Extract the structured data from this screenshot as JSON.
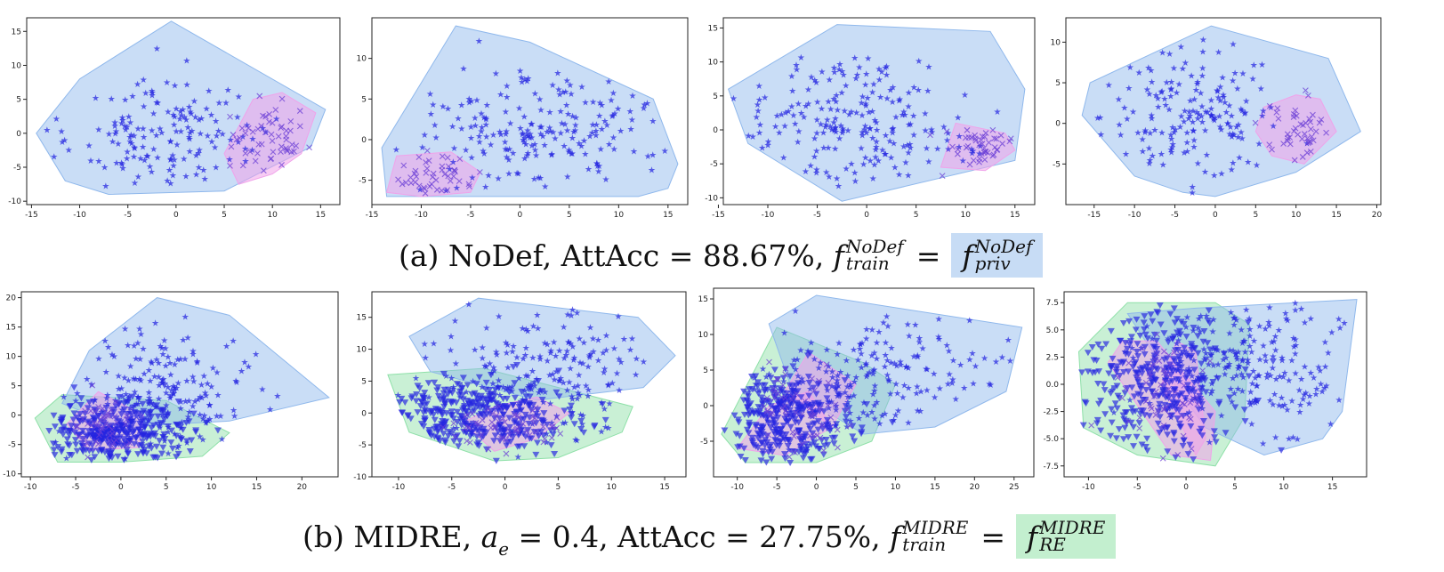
{
  "colors": {
    "hull_blue": "#8fb8ec",
    "hull_pink": "#f0a3ea",
    "hull_green": "#8ee0a8",
    "marker": "#2525e0",
    "highlight_a": "#c7dcf5",
    "highlight_b": "#c3efcf"
  },
  "captions": {
    "a": {
      "prefix": "(a) NoDef, AttAcc = 88.67%, ",
      "f": "f",
      "sup1": "NoDef",
      "sub1": "train",
      "eq": "=",
      "sup2": "NoDef",
      "sub2": "priv"
    },
    "b": {
      "prefix": "(b) MIDRE, ",
      "a_sym": "a",
      "a_sub": "e",
      "middle": " = 0.4, AttAcc = 27.75%, ",
      "f": "f",
      "sup1": "MIDRE",
      "sub1": "train",
      "eq": "=",
      "sup2": "MIDRE",
      "sub2": "RE"
    }
  },
  "chart_data": [
    {
      "type": "scatter",
      "row": "a",
      "xlim": [
        -15.5,
        17
      ],
      "ylim": [
        -10.5,
        17
      ],
      "xticks": [
        "-15",
        "-10",
        "-5",
        "0",
        "5",
        "10",
        "15"
      ],
      "yticks": [
        "-10",
        "-5",
        "0",
        "5",
        "10",
        "15"
      ],
      "hulls": [
        {
          "color": "blue",
          "points": [
            [
              -14.5,
              0
            ],
            [
              -10,
              8
            ],
            [
              -0.5,
              16.5
            ],
            [
              15.5,
              3.5
            ],
            [
              14,
              -2
            ],
            [
              5,
              -8.5
            ],
            [
              -7,
              -9
            ],
            [
              -11.5,
              -7
            ]
          ]
        },
        {
          "color": "pink",
          "points": [
            [
              6.5,
              -7.5
            ],
            [
              10,
              -6
            ],
            [
              13,
              -3
            ],
            [
              14.5,
              3
            ],
            [
              11,
              6
            ],
            [
              8,
              5
            ],
            [
              5,
              -3
            ]
          ]
        }
      ],
      "clusters": [
        {
          "marker": "star",
          "n": 155,
          "cx": -1,
          "cy": 0,
          "sx": 5.2,
          "sy": 4.2,
          "seed": 11
        },
        {
          "marker": "x",
          "n": 55,
          "cx": 10,
          "cy": -1,
          "sx": 2.2,
          "sy": 3.0,
          "seed": 12
        }
      ]
    },
    {
      "type": "scatter",
      "row": "a",
      "xlim": [
        -15,
        17
      ],
      "ylim": [
        -8,
        15
      ],
      "xticks": [
        "-15",
        "-10",
        "-5",
        "0",
        "5",
        "10",
        "15"
      ],
      "yticks": [
        "-5",
        "0",
        "5",
        "10"
      ],
      "hulls": [
        {
          "color": "blue",
          "points": [
            [
              -14,
              -1
            ],
            [
              -6.5,
              14
            ],
            [
              1,
              12
            ],
            [
              13.5,
              5
            ],
            [
              16,
              -3
            ],
            [
              15,
              -6
            ],
            [
              12,
              -7
            ],
            [
              -7,
              -7
            ],
            [
              -13.5,
              -7
            ]
          ]
        },
        {
          "color": "pink",
          "points": [
            [
              -13.5,
              -6.5
            ],
            [
              -12.5,
              -2
            ],
            [
              -7,
              -1.5
            ],
            [
              -4,
              -4
            ],
            [
              -5,
              -6.5
            ],
            [
              -10,
              -7
            ]
          ]
        }
      ],
      "clusters": [
        {
          "marker": "star",
          "n": 200,
          "cx": 2,
          "cy": 1.5,
          "sx": 6.5,
          "sy": 4.2,
          "seed": 21
        },
        {
          "marker": "x",
          "n": 45,
          "cx": -9,
          "cy": -4.5,
          "sx": 2.2,
          "sy": 1.3,
          "seed": 22
        }
      ]
    },
    {
      "type": "scatter",
      "row": "a",
      "xlim": [
        -14.5,
        17
      ],
      "ylim": [
        -11,
        16.5
      ],
      "xticks": [
        "-15",
        "-10",
        "-5",
        "0",
        "5",
        "10",
        "15"
      ],
      "yticks": [
        "-10",
        "-5",
        "0",
        "5",
        "10",
        "15"
      ],
      "hulls": [
        {
          "color": "blue",
          "points": [
            [
              -14,
              6
            ],
            [
              -3,
              15.5
            ],
            [
              12.5,
              14.5
            ],
            [
              16,
              6
            ],
            [
              15,
              -4.5
            ],
            [
              -2.5,
              -10.5
            ],
            [
              -12,
              -2
            ]
          ]
        },
        {
          "color": "pink",
          "points": [
            [
              7.5,
              -5.5
            ],
            [
              9,
              1
            ],
            [
              14,
              -0.5
            ],
            [
              15,
              -3
            ],
            [
              12,
              -6
            ]
          ]
        }
      ],
      "clusters": [
        {
          "marker": "star",
          "n": 210,
          "cx": -2,
          "cy": 0.5,
          "sx": 6.0,
          "sy": 5.0,
          "seed": 31
        },
        {
          "marker": "x",
          "n": 45,
          "cx": 11.5,
          "cy": -2.5,
          "sx": 1.8,
          "sy": 1.5,
          "seed": 32
        }
      ]
    },
    {
      "type": "scatter",
      "row": "a",
      "xlim": [
        -18.5,
        20.5
      ],
      "ylim": [
        -10,
        13
      ],
      "xticks": [
        "-15",
        "-10",
        "-5",
        "0",
        "5",
        "10",
        "15",
        "20"
      ],
      "yticks": [
        "-5",
        "0",
        "5",
        "10"
      ],
      "hulls": [
        {
          "color": "blue",
          "points": [
            [
              -16.5,
              1
            ],
            [
              -15.5,
              5
            ],
            [
              -0.5,
              12
            ],
            [
              14,
              8
            ],
            [
              18,
              -1
            ],
            [
              10,
              -6
            ],
            [
              0,
              -9
            ],
            [
              -4,
              -8.5
            ],
            [
              -10,
              -6.5
            ]
          ]
        },
        {
          "color": "pink",
          "points": [
            [
              5,
              -1
            ],
            [
              6,
              2
            ],
            [
              10,
              3.5
            ],
            [
              13,
              3
            ],
            [
              15,
              -1
            ],
            [
              11,
              -5
            ],
            [
              7,
              -4
            ]
          ]
        }
      ],
      "clusters": [
        {
          "marker": "star",
          "n": 170,
          "cx": -3,
          "cy": 1,
          "sx": 5.5,
          "sy": 4.0,
          "seed": 41
        },
        {
          "marker": "x",
          "n": 45,
          "cx": 10,
          "cy": -1,
          "sx": 2.2,
          "sy": 1.8,
          "seed": 42
        }
      ]
    },
    {
      "type": "scatter",
      "row": "b",
      "xlim": [
        -11,
        24
      ],
      "ylim": [
        -10.5,
        21
      ],
      "xticks": [
        "-10",
        "-5",
        "0",
        "5",
        "10",
        "15",
        "20"
      ],
      "yticks": [
        "-10",
        "-5",
        "0",
        "5",
        "10",
        "15",
        "20"
      ],
      "hulls": [
        {
          "color": "green",
          "points": [
            [
              -9.5,
              -0.5
            ],
            [
              -6.5,
              3.5
            ],
            [
              5,
              2.5
            ],
            [
              12,
              -3
            ],
            [
              9,
              -7
            ],
            [
              0,
              -8
            ],
            [
              -7,
              -8
            ]
          ]
        },
        {
          "color": "blue",
          "points": [
            [
              -6.5,
              2
            ],
            [
              -3.5,
              11
            ],
            [
              4,
              20
            ],
            [
              12,
              17
            ],
            [
              23,
              3
            ],
            [
              12,
              -1
            ],
            [
              0,
              -2
            ]
          ]
        },
        {
          "color": "pink",
          "points": [
            [
              -6,
              -1.5
            ],
            [
              -2.5,
              4
            ],
            [
              2.5,
              0
            ],
            [
              2,
              -5.5
            ],
            [
              -3.5,
              -6
            ]
          ]
        }
      ],
      "clusters": [
        {
          "marker": "tri",
          "n": 330,
          "cx": -1,
          "cy": -3,
          "sx": 4.5,
          "sy": 2.8,
          "seed": 51
        },
        {
          "marker": "star",
          "n": 200,
          "cx": 4,
          "cy": 4,
          "sx": 5.5,
          "sy": 5.5,
          "seed": 52
        },
        {
          "marker": "x",
          "n": 50,
          "cx": -2,
          "cy": -2,
          "sx": 1.8,
          "sy": 2.2,
          "seed": 53
        }
      ]
    },
    {
      "type": "scatter",
      "row": "b",
      "xlim": [
        -12.5,
        17
      ],
      "ylim": [
        -10,
        19
      ],
      "xticks": [
        "-10",
        "-5",
        "0",
        "5",
        "10",
        "15"
      ],
      "yticks": [
        "-10",
        "-5",
        "0",
        "5",
        "10",
        "15"
      ],
      "hulls": [
        {
          "color": "green",
          "points": [
            [
              -11,
              6
            ],
            [
              -2,
              7
            ],
            [
              12,
              1
            ],
            [
              11,
              -3
            ],
            [
              5,
              -7
            ],
            [
              -1,
              -7.5
            ],
            [
              -9,
              -3
            ]
          ]
        },
        {
          "color": "blue",
          "points": [
            [
              -9,
              12
            ],
            [
              -2.5,
              18
            ],
            [
              12.5,
              15
            ],
            [
              16,
              9
            ],
            [
              13,
              4
            ],
            [
              3,
              2
            ],
            [
              -7,
              6.5
            ]
          ]
        },
        {
          "color": "pink",
          "points": [
            [
              -4,
              -1.5
            ],
            [
              -1,
              1
            ],
            [
              3,
              2.5
            ],
            [
              6,
              0
            ],
            [
              3,
              -4
            ],
            [
              -1,
              -6
            ]
          ]
        }
      ],
      "clusters": [
        {
          "marker": "tri",
          "n": 340,
          "cx": -2.5,
          "cy": -0.5,
          "sx": 4.5,
          "sy": 3.0,
          "seed": 61
        },
        {
          "marker": "star",
          "n": 200,
          "cx": 4,
          "cy": 6,
          "sx": 5.5,
          "sy": 5.0,
          "seed": 62
        },
        {
          "marker": "x",
          "n": 60,
          "cx": 0,
          "cy": -2,
          "sx": 2.4,
          "sy": 1.6,
          "seed": 63
        }
      ]
    },
    {
      "type": "scatter",
      "row": "b",
      "xlim": [
        -13,
        27.5
      ],
      "ylim": [
        -10,
        16.5
      ],
      "xticks": [
        "-10",
        "-5",
        "0",
        "5",
        "10",
        "15",
        "20",
        "25"
      ],
      "yticks": [
        "-5",
        "0",
        "5",
        "10",
        "15"
      ],
      "hulls": [
        {
          "color": "green",
          "points": [
            [
              -12,
              -4
            ],
            [
              -5,
              11
            ],
            [
              6,
              6
            ],
            [
              10,
              3
            ],
            [
              7,
              -5
            ],
            [
              0,
              -8
            ],
            [
              -9,
              -8
            ]
          ]
        },
        {
          "color": "blue",
          "points": [
            [
              -6,
              11.5
            ],
            [
              0,
              15.5
            ],
            [
              26,
              11
            ],
            [
              24,
              2
            ],
            [
              15,
              -3
            ],
            [
              6,
              -4
            ],
            [
              -3,
              2
            ]
          ]
        },
        {
          "color": "pink",
          "points": [
            [
              -10,
              -6
            ],
            [
              -6,
              0
            ],
            [
              -1,
              2
            ],
            [
              2,
              -3
            ],
            [
              -4,
              -7
            ]
          ]
        },
        {
          "color": "pink",
          "points": [
            [
              -4,
              2
            ],
            [
              -1,
              7.5
            ],
            [
              5,
              3
            ],
            [
              2,
              -3
            ]
          ]
        }
      ],
      "clusters": [
        {
          "marker": "tri",
          "n": 320,
          "cx": -4,
          "cy": -2,
          "sx": 4.0,
          "sy": 3.5,
          "seed": 71
        },
        {
          "marker": "star",
          "n": 200,
          "cx": 7,
          "cy": 4,
          "sx": 8.0,
          "sy": 4.5,
          "seed": 72
        },
        {
          "marker": "x",
          "n": 60,
          "cx": -2,
          "cy": -1,
          "sx": 3.0,
          "sy": 2.8,
          "seed": 73
        }
      ]
    },
    {
      "type": "scatter",
      "row": "b",
      "xlim": [
        -12.5,
        18.5
      ],
      "ylim": [
        -8.5,
        8.5
      ],
      "xticks": [
        "-10",
        "-5",
        "0",
        "5",
        "10",
        "15"
      ],
      "yticks": [
        "-7.5",
        "-5.0",
        "-2.5",
        "0.0",
        "2.5",
        "5.0",
        "7.5"
      ],
      "hulls": [
        {
          "color": "green",
          "points": [
            [
              -11,
              3
            ],
            [
              -6,
              7.5
            ],
            [
              3,
              7.5
            ],
            [
              6.5,
              5.5
            ],
            [
              6,
              -3
            ],
            [
              3,
              -7.5
            ],
            [
              -5,
              -6.5
            ],
            [
              -10.5,
              -4
            ]
          ]
        },
        {
          "color": "blue",
          "points": [
            [
              -6,
              6.5
            ],
            [
              1,
              7
            ],
            [
              17.5,
              7.8
            ],
            [
              16,
              -2.5
            ],
            [
              14,
              -5
            ],
            [
              8,
              -6.5
            ],
            [
              2,
              -4
            ],
            [
              -2,
              1
            ]
          ]
        },
        {
          "color": "pink",
          "points": [
            [
              -8,
              2
            ],
            [
              -6.5,
              4
            ],
            [
              -3,
              4
            ],
            [
              3,
              -2.5
            ],
            [
              2.5,
              -7
            ],
            [
              -1.5,
              -6.5
            ]
          ]
        },
        {
          "color": "pink",
          "points": [
            [
              -2.5,
              0
            ],
            [
              -1,
              4
            ],
            [
              1,
              3
            ],
            [
              2,
              -5
            ],
            [
              1,
              -6.5
            ]
          ]
        }
      ],
      "clusters": [
        {
          "marker": "tri",
          "n": 340,
          "cx": -3,
          "cy": 0,
          "sx": 4.0,
          "sy": 3.5,
          "seed": 81
        },
        {
          "marker": "star",
          "n": 220,
          "cx": 6,
          "cy": 1.5,
          "sx": 5.5,
          "sy": 3.2,
          "seed": 82
        },
        {
          "marker": "x",
          "n": 60,
          "cx": -2,
          "cy": -1,
          "sx": 2.5,
          "sy": 2.8,
          "seed": 83
        }
      ]
    }
  ]
}
